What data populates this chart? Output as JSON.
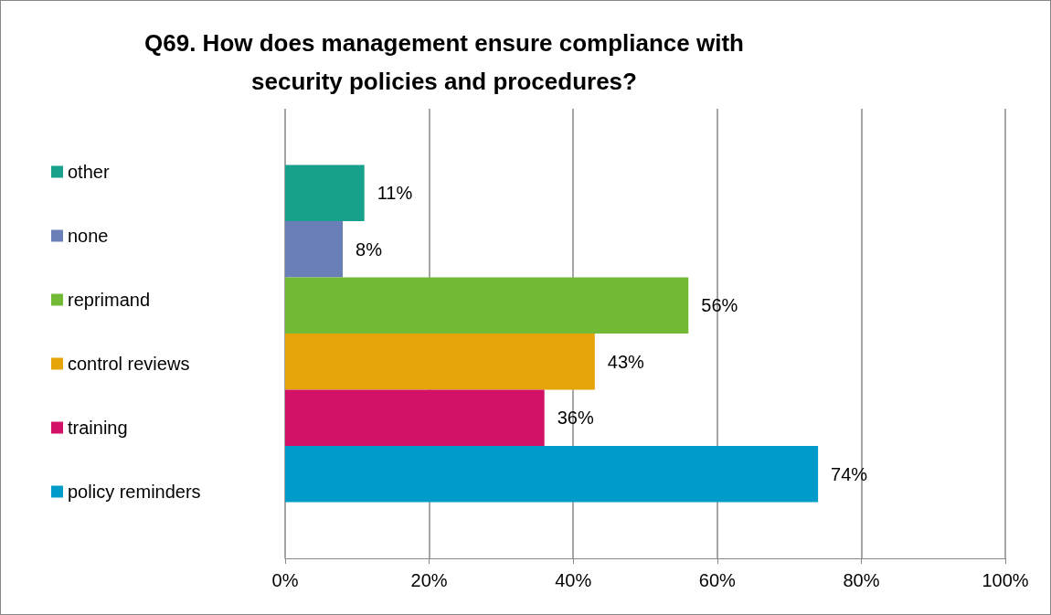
{
  "chart_data": {
    "type": "bar",
    "orientation": "horizontal",
    "title": "Q69. How does management ensure compliance with\nsecurity policies and procedures?",
    "categories": [
      null
    ],
    "series": [
      {
        "name": "other",
        "color": "#17a08c",
        "values": [
          11
        ],
        "value_labels": [
          "11%"
        ]
      },
      {
        "name": "none",
        "color": "#6a7fb8",
        "values": [
          8
        ],
        "value_labels": [
          "8%"
        ]
      },
      {
        "name": "reprimand",
        "color": "#72b936",
        "values": [
          56
        ],
        "value_labels": [
          "56%"
        ]
      },
      {
        "name": "control reviews",
        "color": "#e5a50a",
        "values": [
          43
        ],
        "value_labels": [
          "43%"
        ]
      },
      {
        "name": "training",
        "color": "#d31167",
        "values": [
          36
        ],
        "value_labels": [
          "36%"
        ]
      },
      {
        "name": "policy reminders",
        "color": "#009bc8",
        "values": [
          74
        ],
        "value_labels": [
          "74%"
        ]
      }
    ],
    "xlim": [
      0,
      100
    ],
    "xticks": [
      {
        "value": 0,
        "label": "0%"
      },
      {
        "value": 20,
        "label": "20%"
      },
      {
        "value": 40,
        "label": "40%"
      },
      {
        "value": 60,
        "label": "60%"
      },
      {
        "value": 80,
        "label": "80%"
      },
      {
        "value": 100,
        "label": "100%"
      }
    ],
    "grid": "x",
    "legend": "left",
    "tick_labels": "x"
  }
}
